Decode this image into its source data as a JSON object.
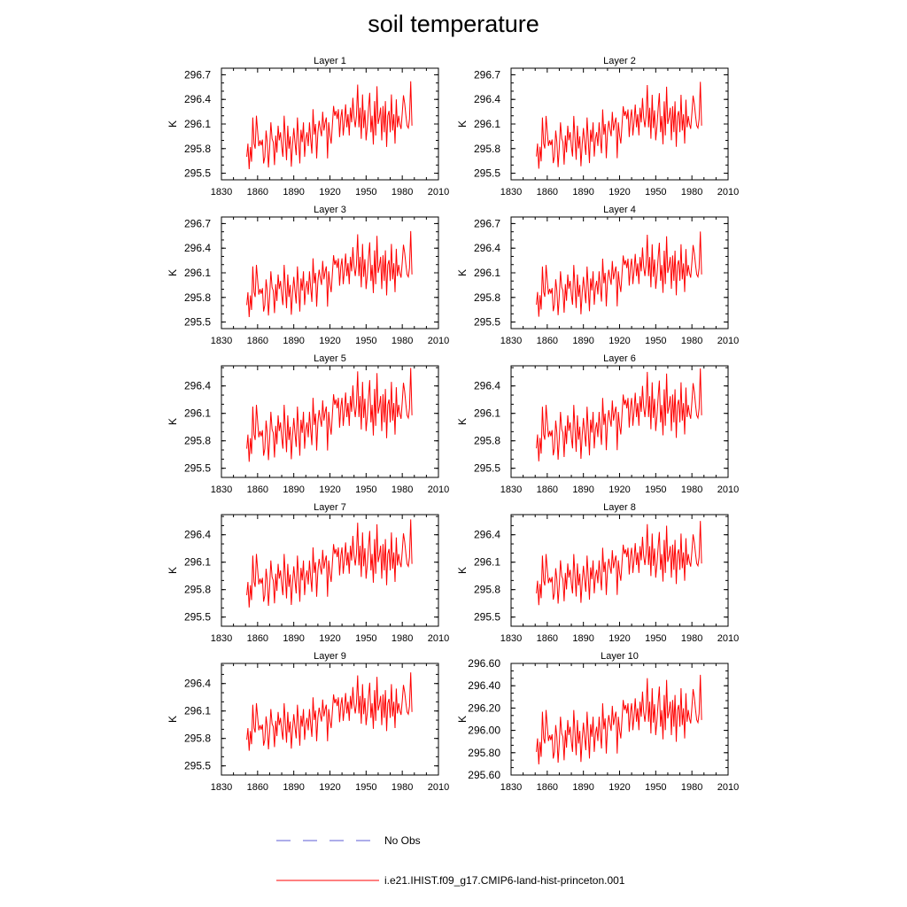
{
  "title": "soil temperature",
  "legend": {
    "obs_label": "No Obs",
    "obs_color": "#5b5bd6",
    "model_label": "i.e21.IHIST.f09_g17.CMIP6-land-hist-princeton.001",
    "model_color": "#ff0000"
  },
  "chart_data": {
    "type": "line",
    "xlim": [
      1830,
      2010
    ],
    "xticks": [
      1830,
      1860,
      1890,
      1920,
      1950,
      1980,
      2010
    ],
    "years": [
      1851,
      1852,
      1853,
      1854,
      1855,
      1856,
      1857,
      1858,
      1859,
      1860,
      1861,
      1862,
      1863,
      1864,
      1865,
      1866,
      1867,
      1868,
      1869,
      1870,
      1871,
      1872,
      1873,
      1874,
      1875,
      1876,
      1877,
      1878,
      1879,
      1880,
      1881,
      1882,
      1883,
      1884,
      1885,
      1886,
      1887,
      1888,
      1889,
      1890,
      1891,
      1892,
      1893,
      1894,
      1895,
      1896,
      1897,
      1898,
      1899,
      1900,
      1901,
      1902,
      1903,
      1904,
      1905,
      1906,
      1907,
      1908,
      1909,
      1910,
      1911,
      1912,
      1913,
      1914,
      1915,
      1916,
      1917,
      1918,
      1919,
      1920,
      1921,
      1922,
      1923,
      1924,
      1925,
      1926,
      1927,
      1928,
      1929,
      1930,
      1931,
      1932,
      1933,
      1934,
      1935,
      1936,
      1937,
      1938,
      1939,
      1940,
      1941,
      1942,
      1943,
      1944,
      1945,
      1946,
      1947,
      1948,
      1949,
      1950,
      1951,
      1952,
      1953,
      1954,
      1955,
      1956,
      1957,
      1958,
      1959,
      1960,
      1961,
      1962,
      1963,
      1964,
      1965,
      1966,
      1967,
      1968,
      1969,
      1970,
      1971,
      1972,
      1973,
      1974,
      1975,
      1976,
      1977,
      1978,
      1979,
      1980,
      1981,
      1982,
      1983,
      1984,
      1985,
      1986,
      1987,
      1988
    ],
    "values": [
      295.7,
      295.86,
      295.55,
      295.82,
      295.64,
      296.18,
      295.86,
      295.8,
      296.2,
      296.02,
      295.83,
      295.9,
      295.84,
      295.91,
      295.62,
      295.7,
      296.02,
      295.88,
      295.57,
      295.8,
      296.12,
      295.92,
      295.88,
      295.6,
      295.96,
      295.75,
      296.08,
      295.9,
      296.0,
      295.82,
      295.7,
      296.2,
      295.94,
      295.66,
      296.08,
      295.8,
      295.95,
      295.58,
      295.85,
      296.05,
      295.88,
      295.72,
      296.18,
      295.92,
      295.62,
      296.03,
      295.88,
      296.12,
      295.7,
      295.92,
      296.0,
      295.83,
      296.12,
      295.92,
      295.74,
      296.28,
      295.97,
      296.1,
      295.68,
      296.0,
      296.14,
      296.04,
      295.95,
      296.25,
      296.02,
      296.12,
      296.18,
      295.68,
      296.12,
      295.96,
      295.86,
      296.08,
      296.32,
      296.2,
      296.26,
      296.16,
      296.28,
      295.94,
      296.18,
      296.28,
      295.96,
      296.12,
      296.34,
      296.06,
      296.22,
      295.96,
      296.3,
      296.12,
      296.42,
      296.18,
      296.06,
      296.2,
      296.58,
      296.06,
      296.3,
      295.92,
      296.46,
      296.05,
      296.27,
      295.9,
      296.07,
      296.3,
      296.48,
      296.0,
      296.2,
      295.85,
      296.38,
      295.96,
      296.56,
      296.1,
      296.18,
      296.3,
      295.9,
      296.32,
      296.0,
      296.38,
      295.82,
      296.2,
      296.26,
      296.0,
      296.46,
      296.02,
      296.22,
      295.86,
      296.4,
      296.06,
      296.2,
      296.1,
      296.04,
      296.24,
      296.45,
      296.35,
      296.2,
      296.08,
      296.05,
      296.16,
      296.62,
      296.08
    ],
    "panels": [
      {
        "title": "Layer 1",
        "ylabel": "K",
        "ylim": [
          295.42,
          296.78
        ],
        "yticks": [
          "295.5",
          "295.8",
          "296.1",
          "296.4",
          "296.7"
        ],
        "offset": 0.0,
        "scale": 1.0
      },
      {
        "title": "Layer 2",
        "ylabel": "K",
        "ylim": [
          295.42,
          296.78
        ],
        "yticks": [
          "295.5",
          "295.8",
          "296.1",
          "296.4",
          "296.7"
        ],
        "offset": 0.0,
        "scale": 0.99
      },
      {
        "title": "Layer 3",
        "ylabel": "K",
        "ylim": [
          295.42,
          296.78
        ],
        "yticks": [
          "295.5",
          "295.8",
          "296.1",
          "296.4",
          "296.7"
        ],
        "offset": 0.0,
        "scale": 0.98
      },
      {
        "title": "Layer 4",
        "ylabel": "K",
        "ylim": [
          295.42,
          296.78
        ],
        "yticks": [
          "295.5",
          "295.8",
          "296.1",
          "296.4",
          "296.7"
        ],
        "offset": 0.0,
        "scale": 0.97
      },
      {
        "title": "Layer 5",
        "ylabel": "K",
        "ylim": [
          295.4,
          296.62
        ],
        "yticks": [
          "295.5",
          "295.8",
          "296.1",
          "296.4"
        ],
        "offset": 0.0,
        "scale": 0.96
      },
      {
        "title": "Layer 6",
        "ylabel": "K",
        "ylim": [
          295.4,
          296.62
        ],
        "yticks": [
          "295.5",
          "295.8",
          "296.1",
          "296.4"
        ],
        "offset": 0.0,
        "scale": 0.95
      },
      {
        "title": "Layer 7",
        "ylabel": "K",
        "ylim": [
          295.4,
          296.62
        ],
        "yticks": [
          "295.5",
          "295.8",
          "296.1",
          "296.4"
        ],
        "offset": 0.005,
        "scale": 0.9
      },
      {
        "title": "Layer 8",
        "ylabel": "K",
        "ylim": [
          295.4,
          296.62
        ],
        "yticks": [
          "295.5",
          "295.8",
          "296.1",
          "296.4"
        ],
        "offset": 0.01,
        "scale": 0.86
      },
      {
        "title": "Layer 9",
        "ylabel": "K",
        "ylim": [
          295.4,
          296.62
        ],
        "yticks": [
          "295.5",
          "295.8",
          "296.1",
          "296.4"
        ],
        "offset": 0.015,
        "scale": 0.8
      },
      {
        "title": "Layer 10",
        "ylabel": "K",
        "ylim": [
          295.6,
          296.6
        ],
        "yticks": [
          "295.60",
          "295.80",
          "296.00",
          "296.20",
          "296.40",
          "296.60"
        ],
        "offset": 0.02,
        "scale": 0.75
      }
    ]
  }
}
